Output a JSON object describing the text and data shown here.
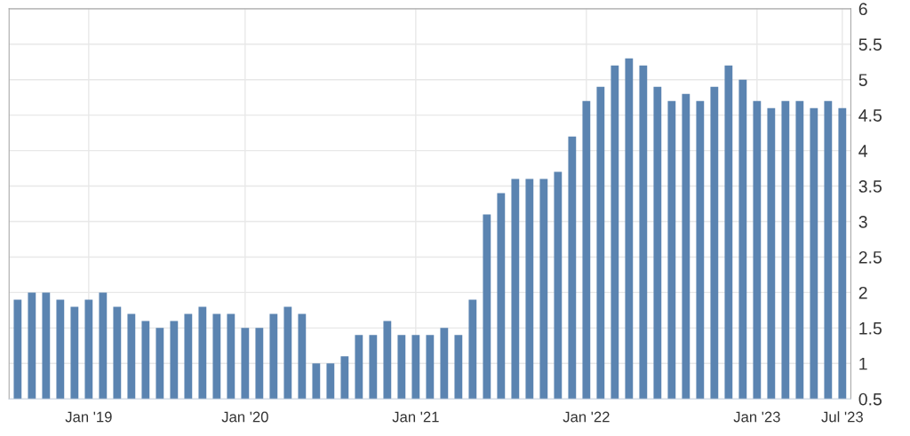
{
  "chart_data": {
    "type": "bar",
    "categories": [
      null,
      null,
      null,
      null,
      null,
      "Jan '19",
      null,
      null,
      null,
      null,
      null,
      null,
      null,
      null,
      null,
      null,
      "Jan '20",
      null,
      null,
      null,
      null,
      null,
      null,
      null,
      null,
      null,
      null,
      null,
      "Jan '21",
      null,
      null,
      null,
      null,
      null,
      null,
      null,
      null,
      null,
      null,
      null,
      "Jan '22",
      null,
      null,
      null,
      null,
      null,
      null,
      null,
      null,
      null,
      null,
      null,
      "Jan '23",
      null,
      null,
      null,
      null,
      null,
      "Jul '23"
    ],
    "values": [
      1.9,
      2.0,
      2.0,
      1.9,
      1.8,
      1.9,
      2.0,
      1.8,
      1.7,
      1.6,
      1.5,
      1.6,
      1.7,
      1.8,
      1.7,
      1.7,
      1.5,
      1.5,
      1.7,
      1.8,
      1.7,
      1.0,
      1.0,
      1.1,
      1.4,
      1.4,
      1.6,
      1.4,
      1.4,
      1.4,
      1.5,
      1.4,
      1.9,
      3.1,
      3.4,
      3.6,
      3.6,
      3.6,
      3.7,
      4.2,
      4.7,
      4.9,
      5.2,
      5.3,
      5.2,
      4.9,
      4.7,
      4.8,
      4.7,
      4.9,
      5.2,
      5.0,
      4.7,
      4.6,
      4.7,
      4.7,
      4.6,
      4.7,
      4.6
    ],
    "color": "#5b84b1",
    "ylim": [
      0.5,
      6
    ],
    "yticks": [
      0.5,
      1,
      1.5,
      2,
      2.5,
      3,
      3.5,
      4,
      4.5,
      5,
      5.5,
      6
    ],
    "grid": true
  }
}
